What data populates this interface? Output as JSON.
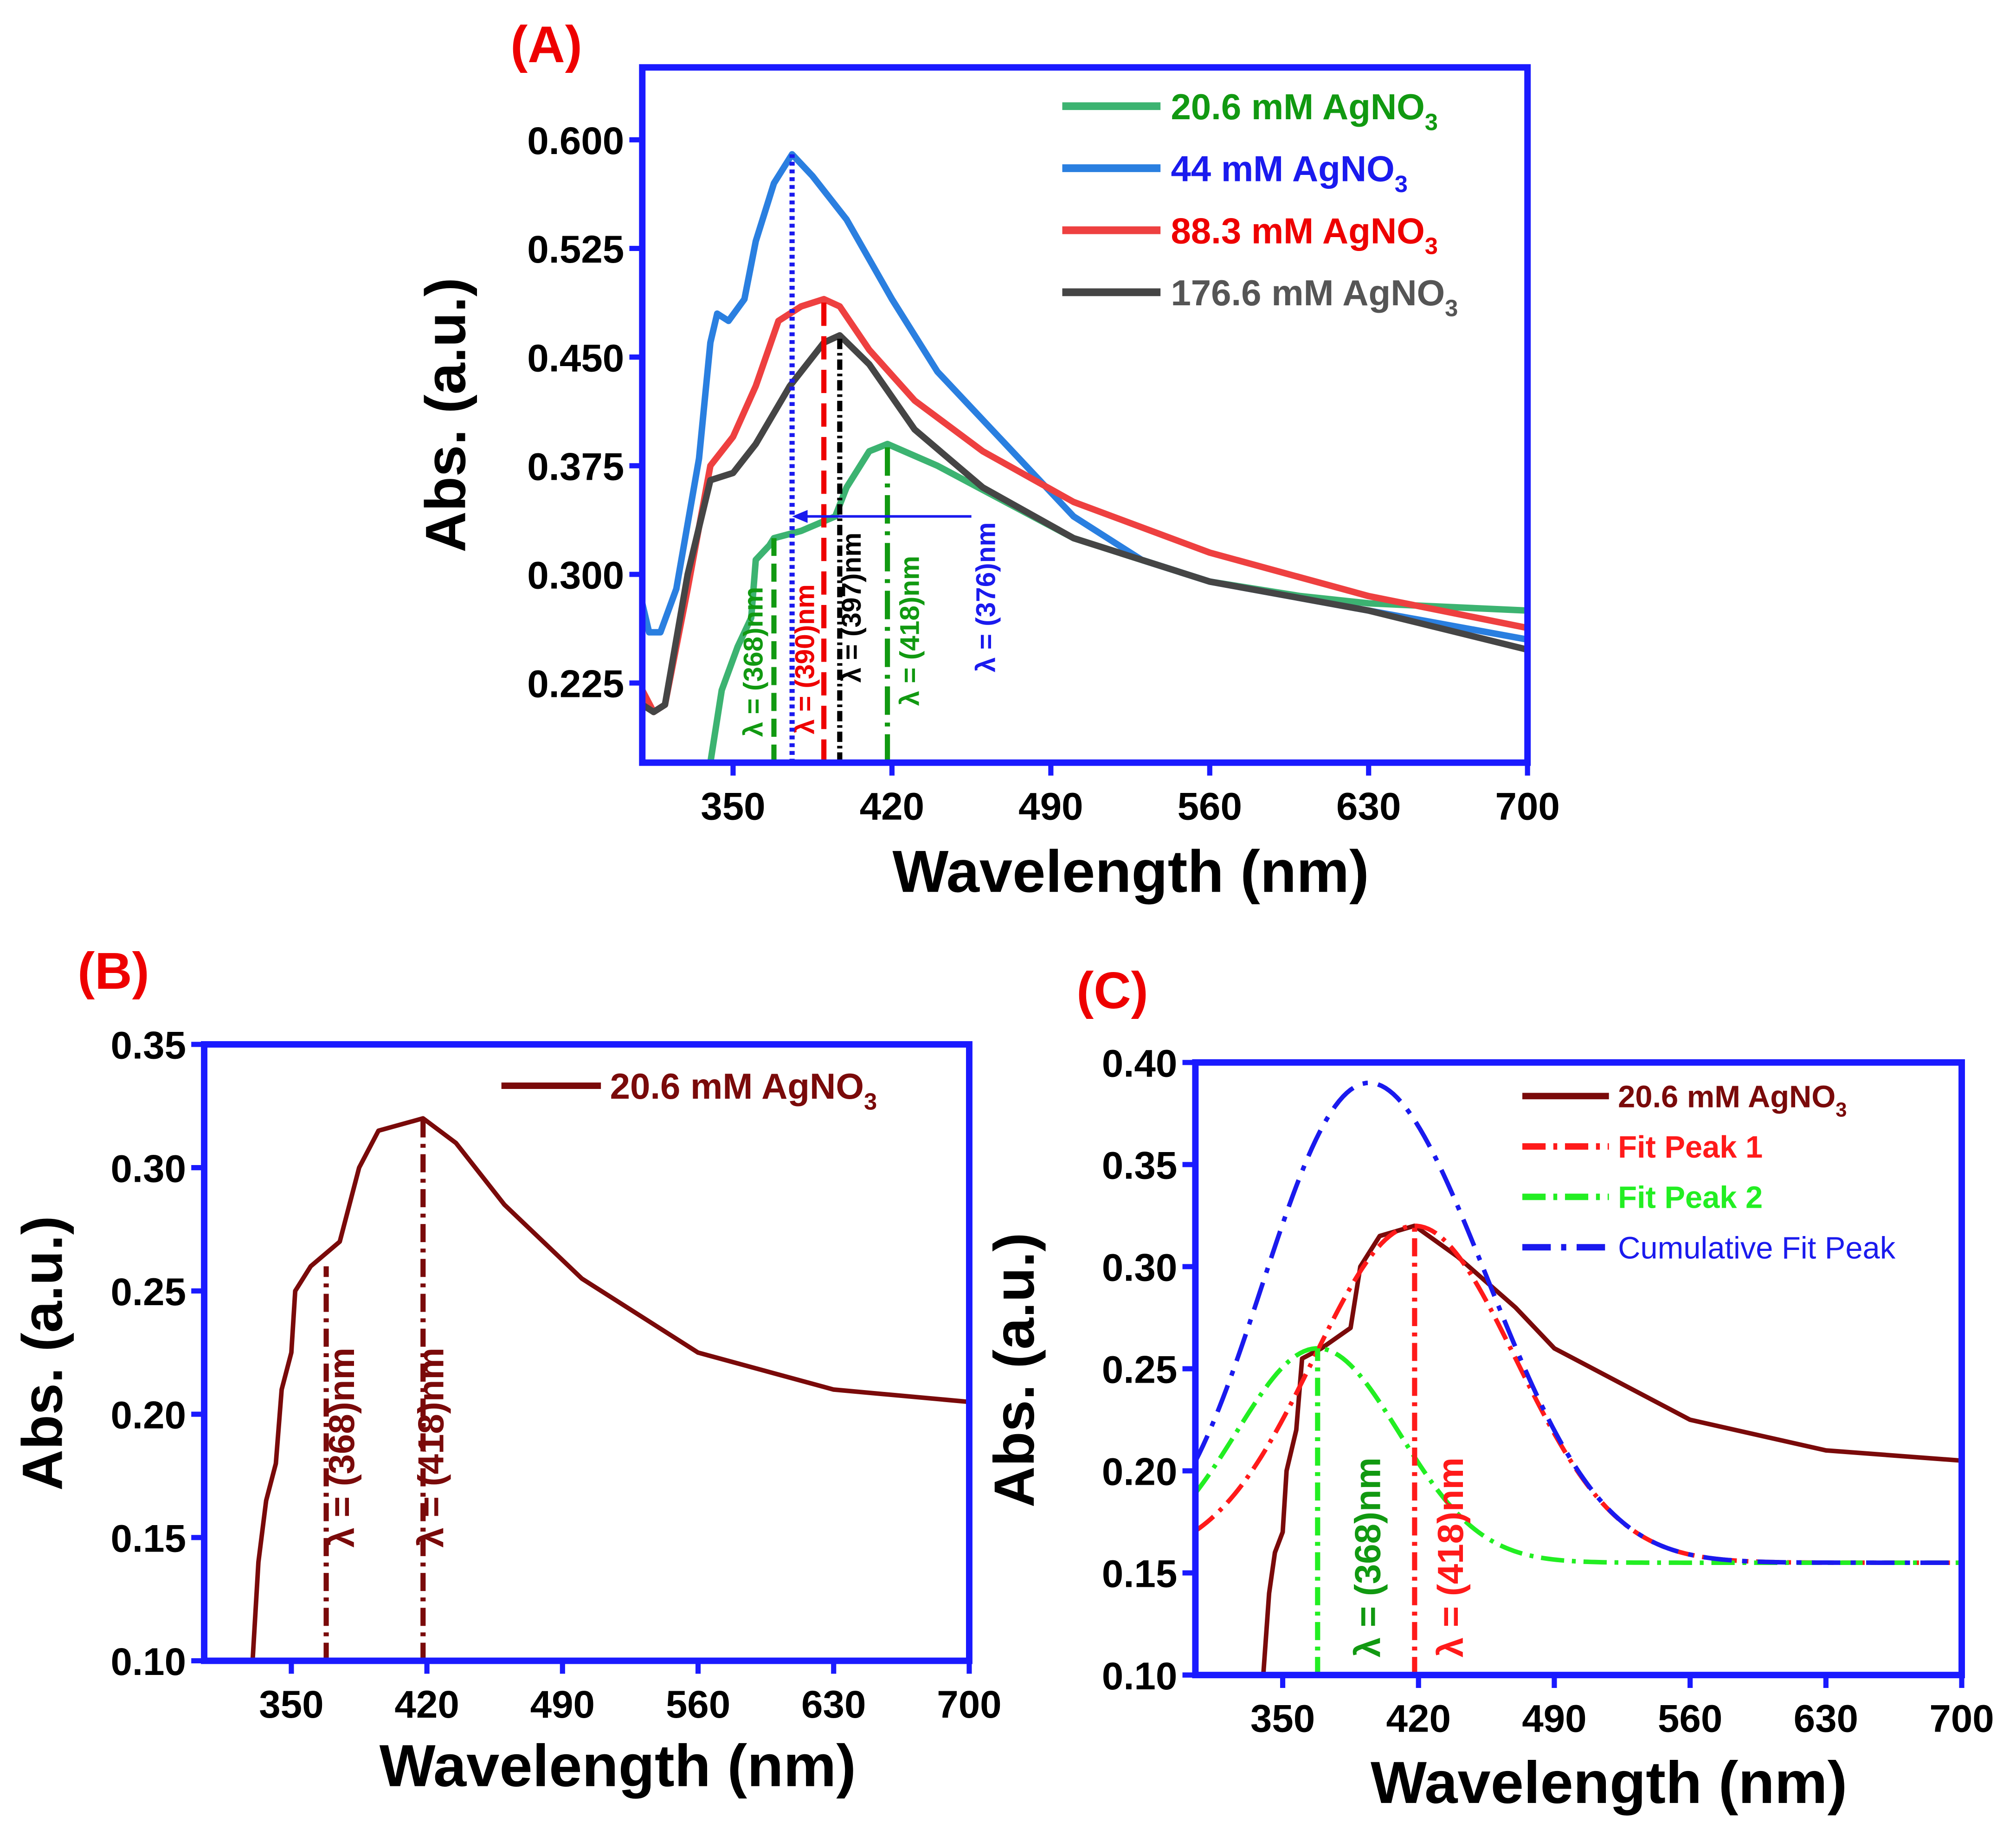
{
  "chart_data": [
    {
      "id": "A",
      "type": "line",
      "panel_label": "(A)",
      "xlabel": "Wavelength (nm)",
      "ylabel": "Abs. (a.u.)",
      "xlim": [
        310,
        700
      ],
      "ylim": [
        0.17,
        0.65
      ],
      "xticks": [
        350,
        420,
        490,
        560,
        630,
        700
      ],
      "yticks": [
        0.225,
        0.3,
        0.375,
        0.45,
        0.525,
        0.6
      ],
      "ytick_labels": [
        "0.225",
        "0.300",
        "0.375",
        "0.450",
        "0.525",
        "0.600"
      ],
      "legend_position": "top-right",
      "series": [
        {
          "name_main": "20.6 mM AgNO",
          "name_sub": "3",
          "color": "#3cb371",
          "text_color": "#119911",
          "x": [
            340,
            345,
            352,
            358,
            360,
            366,
            368,
            380,
            395,
            400,
            410,
            418,
            440,
            470,
            500,
            530,
            560,
            600,
            630,
            700
          ],
          "y": [
            0.17,
            0.22,
            0.25,
            0.27,
            0.31,
            0.32,
            0.325,
            0.33,
            0.34,
            0.36,
            0.385,
            0.39,
            0.375,
            0.35,
            0.325,
            0.31,
            0.295,
            0.285,
            0.28,
            0.275
          ]
        },
        {
          "name_main": "44 mM AgNO",
          "name_sub": "3",
          "color": "#2a7fe0",
          "text_color": "#1a1aee",
          "x": [
            310,
            313,
            318,
            325,
            335,
            340,
            343,
            348,
            355,
            360,
            368,
            376,
            385,
            400,
            420,
            440,
            470,
            500,
            530,
            560,
            630,
            700
          ],
          "y": [
            0.28,
            0.26,
            0.26,
            0.29,
            0.38,
            0.46,
            0.48,
            0.475,
            0.49,
            0.53,
            0.57,
            0.59,
            0.575,
            0.545,
            0.49,
            0.44,
            0.39,
            0.34,
            0.31,
            0.295,
            0.275,
            0.255
          ]
        },
        {
          "name_main": "88.3 mM AgNO",
          "name_sub": "3",
          "color": "#ee4040",
          "text_color": "#ee0000",
          "x": [
            310,
            315,
            320,
            330,
            340,
            350,
            360,
            370,
            380,
            390,
            397,
            410,
            430,
            460,
            500,
            560,
            630,
            700
          ],
          "y": [
            0.22,
            0.205,
            0.21,
            0.29,
            0.375,
            0.395,
            0.43,
            0.475,
            0.485,
            0.49,
            0.485,
            0.455,
            0.42,
            0.385,
            0.35,
            0.315,
            0.285,
            0.263
          ]
        },
        {
          "name_main": "176.6 mM AgNO",
          "name_sub": "3",
          "color": "#454545",
          "text_color": "#555555",
          "x": [
            310,
            315,
            320,
            330,
            340,
            350,
            360,
            375,
            390,
            397,
            410,
            430,
            460,
            500,
            560,
            630,
            700
          ],
          "y": [
            0.21,
            0.205,
            0.21,
            0.3,
            0.365,
            0.37,
            0.39,
            0.43,
            0.46,
            0.465,
            0.445,
            0.4,
            0.36,
            0.325,
            0.295,
            0.275,
            0.248
          ]
        }
      ],
      "annotations": [
        {
          "text": "λ = (368)nm",
          "x": 368,
          "ytop": 0.325,
          "color": "#119911",
          "dash": "14,6"
        },
        {
          "text": "λ = (390)nm",
          "x": 390,
          "ytop": 0.49,
          "color": "#ee0000",
          "dash": "18,8"
        },
        {
          "text": "λ = (397)nm",
          "x": 397,
          "ytop": 0.465,
          "color": "#000000",
          "dash": "8,3,2,3"
        },
        {
          "text": "λ = (418)nm",
          "x": 418,
          "ytop": 0.39,
          "color": "#119911",
          "dash": "22,6,3,6"
        },
        {
          "text": "λ = (376)nm",
          "x": 376,
          "ytop": 0.59,
          "color": "#1a1aee",
          "dash": "3,3",
          "arrow_from": 455,
          "arrow_y": 0.34
        }
      ]
    },
    {
      "id": "B",
      "type": "line",
      "panel_label": "(B)",
      "xlabel": "Wavelength (nm)",
      "ylabel": "Abs. (a.u.)",
      "xlim": [
        305,
        700
      ],
      "ylim": [
        0.1,
        0.35
      ],
      "xticks": [
        350,
        420,
        490,
        560,
        630,
        700
      ],
      "yticks": [
        0.1,
        0.15,
        0.2,
        0.25,
        0.3,
        0.35
      ],
      "ytick_labels": [
        "0.10",
        "0.15",
        "0.20",
        "0.25",
        "0.30",
        "0.35"
      ],
      "legend_position": "top-right",
      "series": [
        {
          "name_main": "20.6 mM AgNO",
          "name_sub": "3",
          "color": "#7a0a0a",
          "text_color": "#7a0a0a",
          "x": [
            330,
            333,
            337,
            342,
            345,
            350,
            352,
            360,
            375,
            385,
            395,
            418,
            435,
            460,
            500,
            560,
            630,
            700
          ],
          "y": [
            0.1,
            0.14,
            0.165,
            0.18,
            0.21,
            0.225,
            0.25,
            0.26,
            0.27,
            0.3,
            0.315,
            0.32,
            0.31,
            0.285,
            0.255,
            0.225,
            0.21,
            0.205
          ]
        }
      ],
      "annotations": [
        {
          "text": "λ = (368)nm",
          "x": 368,
          "ytop": 0.26,
          "color": "#7a0a0a",
          "dash": "14,5,3,5"
        },
        {
          "text": "λ = (418)nm",
          "x": 418,
          "ytop": 0.32,
          "color": "#7a0a0a",
          "dash": "14,5,3,5"
        }
      ]
    },
    {
      "id": "C",
      "type": "line",
      "panel_label": "(C)",
      "xlabel": "Wavelength (nm)",
      "ylabel": "Abs. (a.u.)",
      "xlim": [
        305,
        700
      ],
      "ylim": [
        0.1,
        0.4
      ],
      "xticks": [
        350,
        420,
        490,
        560,
        630,
        700
      ],
      "yticks": [
        0.1,
        0.15,
        0.2,
        0.25,
        0.3,
        0.35,
        0.4
      ],
      "ytick_labels": [
        "0.10",
        "0.15",
        "0.20",
        "0.25",
        "0.30",
        "0.35",
        "0.40"
      ],
      "legend_position": "top-right",
      "series": [
        {
          "name_main": "20.6 mM AgNO",
          "name_sub": "3",
          "color": "#7a0a0a",
          "text_color": "#7a0a0a",
          "x": [
            340,
            343,
            346,
            350,
            352,
            357,
            360,
            370,
            385,
            390,
            400,
            418,
            440,
            470,
            490,
            530,
            560,
            630,
            700
          ],
          "y": [
            0.1,
            0.14,
            0.16,
            0.17,
            0.2,
            0.22,
            0.255,
            0.26,
            0.27,
            0.3,
            0.315,
            0.32,
            0.305,
            0.28,
            0.26,
            0.24,
            0.225,
            0.21,
            0.205
          ]
        },
        {
          "name_main": "Fit Peak 1",
          "name_sub": "",
          "color": "#ff1a1a",
          "text_color": "#ff1a1a",
          "dash": "18,6,3,6",
          "gaussian": {
            "center": 418,
            "amplitude": 0.165,
            "sigma": 52,
            "baseline": 0.155
          }
        },
        {
          "name_main": "Fit Peak 2",
          "name_sub": "",
          "color": "#22ee22",
          "text_color": "#22ee22",
          "dash": "18,6,3,6",
          "gaussian": {
            "center": 368,
            "amplitude": 0.105,
            "sigma": 42,
            "baseline": 0.155
          }
        },
        {
          "name_main": "Cumulative Fit Peak",
          "name_sub": "",
          "color": "#1a1aee",
          "text_color": "#1a1aee",
          "dash": "22,8,4,8",
          "normal_weight": true,
          "cumulative": true
        }
      ],
      "annotations": [
        {
          "text": "λ = (368)nm",
          "x": 368,
          "ytop": 0.26,
          "color": "#22ee22",
          "text_color": "#119911",
          "dash": "14,5,3,5"
        },
        {
          "text": "λ = (418)nm",
          "x": 418,
          "ytop": 0.32,
          "color": "#ff1a1a",
          "dash": "14,5,3,5"
        }
      ]
    }
  ],
  "colors": {
    "frame": "#1a1aff",
    "panel_label": "#ee0000"
  }
}
